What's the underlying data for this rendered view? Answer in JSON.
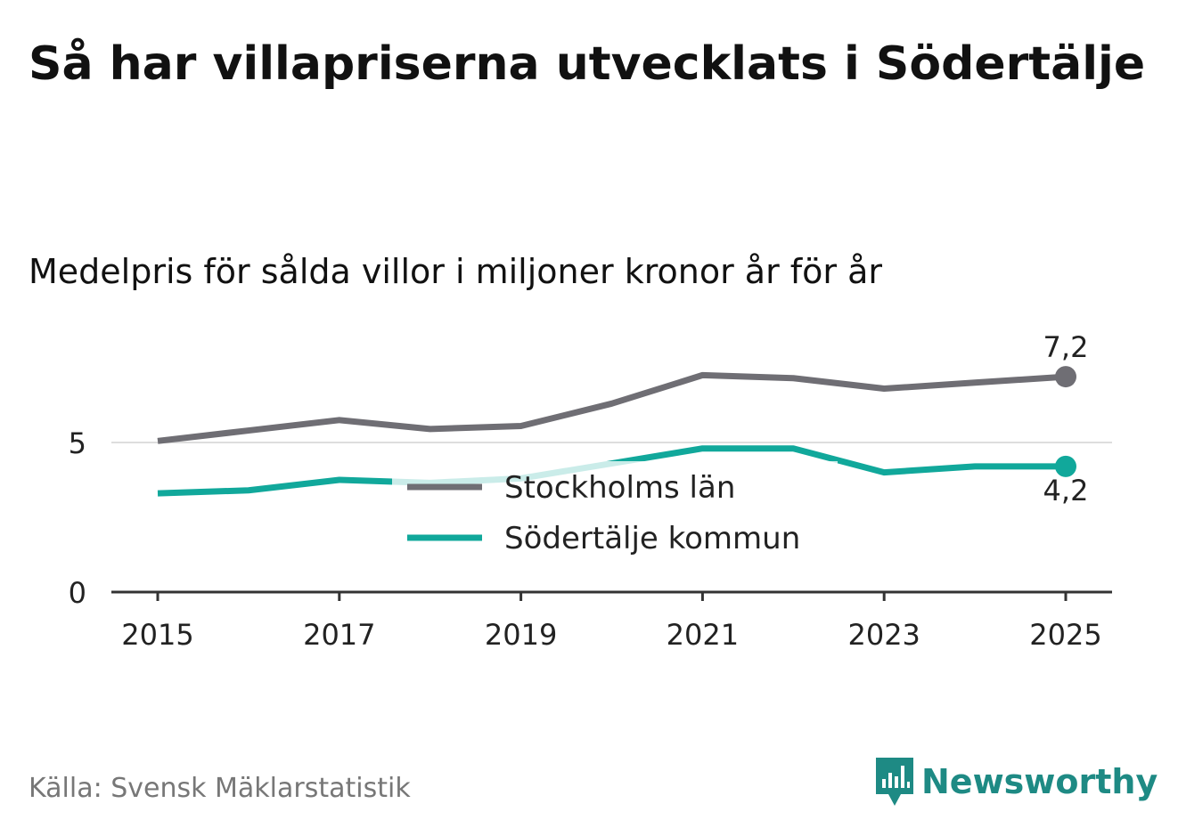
{
  "title": "Så har villapriserna utvecklats i Södertälje",
  "subtitle": "Medelpris för sålda villor i miljoner kronor år för år",
  "source": "Källa: Svensk Mäklarstatistik",
  "brand": "Newsworthy",
  "colors": {
    "stockholm": "#6f6e74",
    "sodertalje": "#11a89b",
    "brand": "#1e8a84",
    "axis": "#333333",
    "grid": "#dddddd"
  },
  "chart_data": {
    "type": "line",
    "title": "Så har villapriserna utvecklats i Södertälje",
    "subtitle": "Medelpris för sålda villor i miljoner kronor år för år",
    "xlabel": "",
    "ylabel": "",
    "x": [
      2015,
      2016,
      2017,
      2018,
      2019,
      2020,
      2021,
      2022,
      2023,
      2024,
      2025
    ],
    "ylim": [
      0,
      7.9
    ],
    "yticks": [
      0,
      5
    ],
    "ytick_labels": [
      "0",
      "5"
    ],
    "xticks": [
      2015,
      2017,
      2019,
      2021,
      2023,
      2025
    ],
    "xtick_labels": [
      "2015",
      "2017",
      "2019",
      "2021",
      "2023",
      "2025"
    ],
    "grid": true,
    "legend_position": "center",
    "series": [
      {
        "name": "Stockholms län",
        "key": "stockholm",
        "values": [
          5.05,
          5.4,
          5.75,
          5.45,
          5.55,
          6.3,
          7.25,
          7.15,
          6.8,
          7.0,
          7.2
        ],
        "end_label": "7,2"
      },
      {
        "name": "Södertälje kommun",
        "key": "sodertalje",
        "values": [
          3.3,
          3.4,
          3.75,
          3.65,
          3.8,
          4.3,
          4.8,
          4.8,
          4.0,
          4.2,
          4.2
        ],
        "end_label": "4,2"
      }
    ]
  }
}
